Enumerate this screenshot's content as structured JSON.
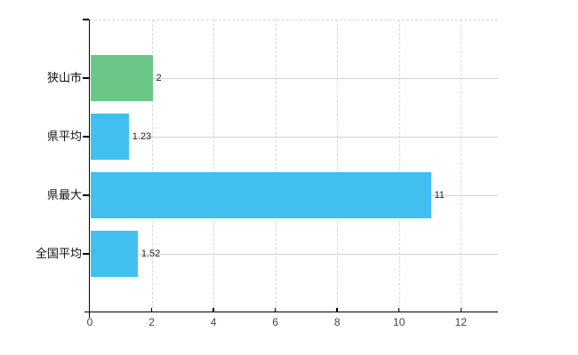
{
  "chart_data": {
    "type": "bar",
    "orientation": "horizontal",
    "title": "",
    "xlabel": "",
    "ylabel": "",
    "categories": [
      "狭山市",
      "県平均",
      "県最大",
      "全国平均"
    ],
    "values": [
      2,
      1.23,
      11,
      1.52
    ],
    "value_labels": [
      "2",
      "1.23",
      "11",
      "1.52"
    ],
    "colors": [
      "#6cc687",
      "#41c0f0",
      "#41c0f0",
      "#41c0f0"
    ],
    "x_ticks": [
      0,
      2,
      4,
      6,
      8,
      10,
      12
    ],
    "x_tick_labels": [
      "0",
      "2",
      "4",
      "6",
      "8",
      "10",
      "12"
    ],
    "xlim": [
      0,
      13.2
    ],
    "grid": true,
    "legend": false,
    "axis_color": "#000000",
    "gridline_color": "#d8d8d8"
  }
}
